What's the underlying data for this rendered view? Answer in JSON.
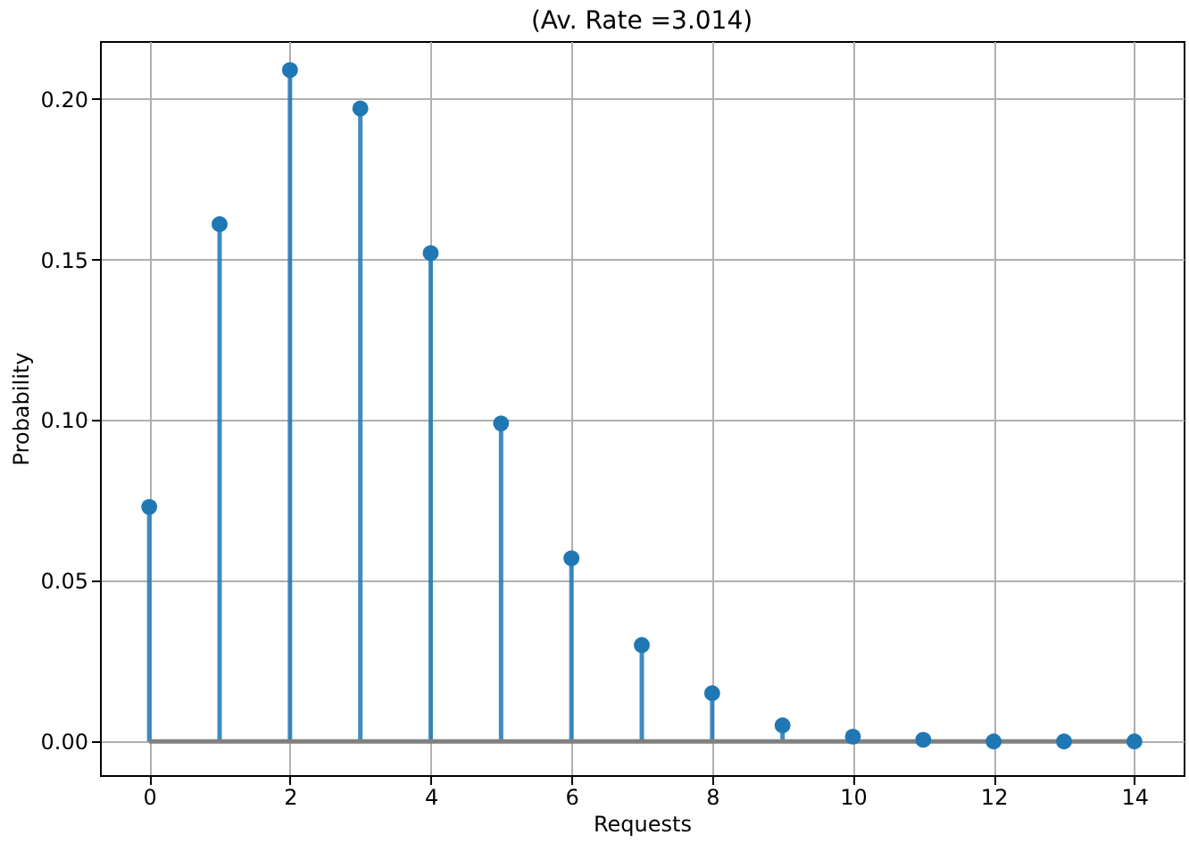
{
  "chart_data": {
    "type": "lollipop",
    "title": "(Av. Rate =3.014)",
    "xlabel": "Requests",
    "ylabel": "Probability",
    "x": [
      0,
      1,
      2,
      3,
      4,
      5,
      6,
      7,
      8,
      9,
      10,
      11,
      12,
      13,
      14
    ],
    "values": [
      0.073,
      0.161,
      0.209,
      0.197,
      0.152,
      0.099,
      0.057,
      0.03,
      0.015,
      0.005,
      0.0015,
      0.0005,
      0,
      0,
      0
    ],
    "color": "#1f77b4",
    "xlim": [
      -0.7,
      14.7
    ],
    "ylim": [
      -0.0105,
      0.218
    ],
    "xticks": [
      0,
      2,
      4,
      6,
      8,
      10,
      12,
      14
    ],
    "yticks": [
      {
        "value": 0,
        "label": "0.00"
      },
      {
        "value": 0.05,
        "label": "0.05"
      },
      {
        "value": 0.1,
        "label": "0.10"
      },
      {
        "value": 0.15,
        "label": "0.15"
      },
      {
        "value": 0.2,
        "label": "0.20"
      }
    ],
    "grid": true,
    "marker": "circle"
  }
}
